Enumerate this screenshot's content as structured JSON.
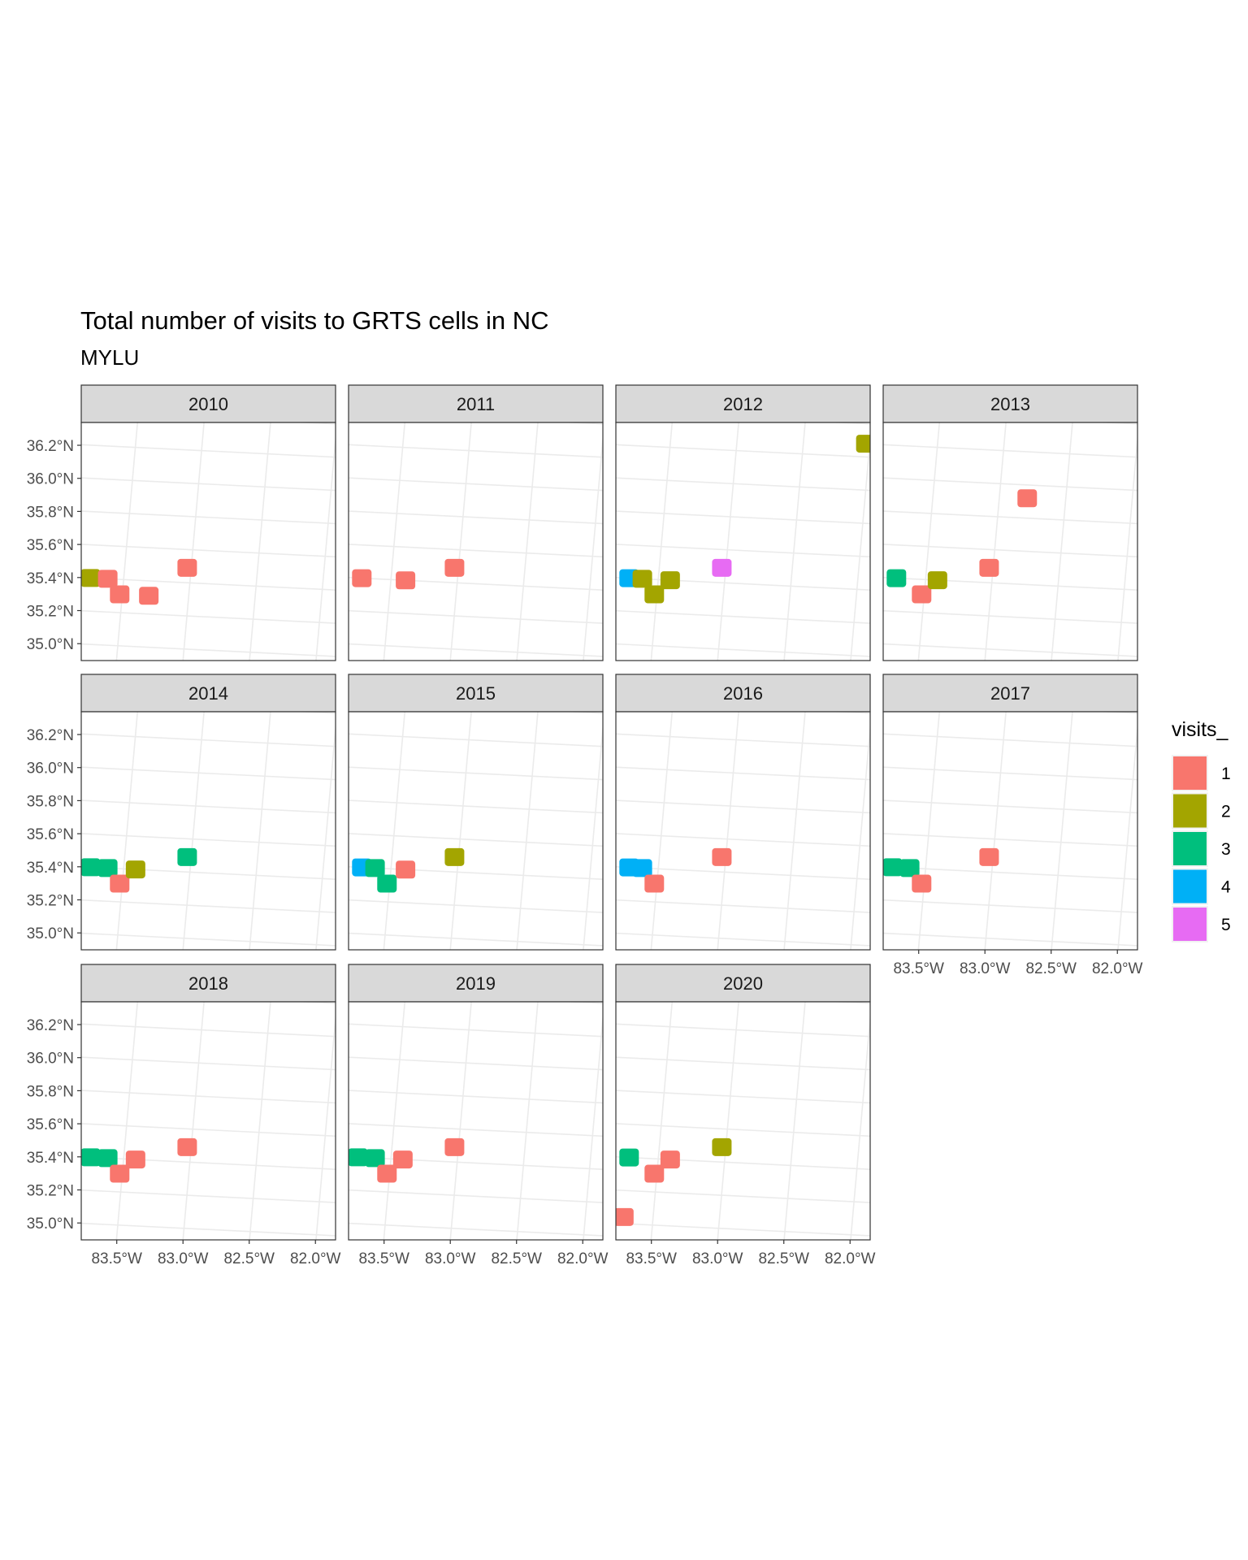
{
  "chart_data": {
    "type": "scatter",
    "title": "Total number of visits to GRTS cells in NC",
    "subtitle": "MYLU",
    "legend": {
      "title": "visits_",
      "position": "right",
      "levels": [
        {
          "label": "1",
          "color": "#F8766D"
        },
        {
          "label": "2",
          "color": "#A3A500"
        },
        {
          "label": "3",
          "color": "#00BF7D"
        },
        {
          "label": "4",
          "color": "#00B0F6"
        },
        {
          "label": "5",
          "color": "#E76BF3"
        }
      ]
    },
    "x_tick_labels": [
      "83.5°W",
      "83.0°W",
      "82.5°W",
      "82.0°W"
    ],
    "y_tick_labels": [
      "35.0°N",
      "35.2°N",
      "35.4°N",
      "35.6°N",
      "35.8°N",
      "36.0°N",
      "36.2°N"
    ],
    "x_ticks": [
      -83.5,
      -83.0,
      -82.5,
      -82.0
    ],
    "y_ticks": [
      35.0,
      35.2,
      35.4,
      35.6,
      35.8,
      36.0,
      36.2
    ],
    "xlim": [
      -83.82,
      -81.9
    ],
    "ylim": [
      34.93,
      36.37
    ],
    "grid": true,
    "panels": [
      {
        "label": "2010",
        "cells": [
          {
            "lon": -83.75,
            "lat": 35.4,
            "visits": 2
          },
          {
            "lon": -83.62,
            "lat": 35.4,
            "visits": 1
          },
          {
            "lon": -83.52,
            "lat": 35.31,
            "visits": 1
          },
          {
            "lon": -83.3,
            "lat": 35.31,
            "visits": 1
          },
          {
            "lon": -83.03,
            "lat": 35.49,
            "visits": 1
          }
        ]
      },
      {
        "label": "2011",
        "cells": [
          {
            "lon": -83.72,
            "lat": 35.4,
            "visits": 1
          },
          {
            "lon": -83.39,
            "lat": 35.4,
            "visits": 1
          },
          {
            "lon": -83.03,
            "lat": 35.49,
            "visits": 1
          }
        ]
      },
      {
        "label": "2012",
        "cells": [
          {
            "lon": -83.72,
            "lat": 35.4,
            "visits": 4
          },
          {
            "lon": -83.62,
            "lat": 35.4,
            "visits": 2
          },
          {
            "lon": -83.52,
            "lat": 35.31,
            "visits": 2
          },
          {
            "lon": -83.41,
            "lat": 35.4,
            "visits": 2
          },
          {
            "lon": -83.03,
            "lat": 35.49,
            "visits": 5
          },
          {
            "lon": -82.03,
            "lat": 36.28,
            "visits": 2
          }
        ]
      },
      {
        "label": "2013",
        "cells": [
          {
            "lon": -83.72,
            "lat": 35.4,
            "visits": 3
          },
          {
            "lon": -83.52,
            "lat": 35.31,
            "visits": 1
          },
          {
            "lon": -83.41,
            "lat": 35.4,
            "visits": 2
          },
          {
            "lon": -83.03,
            "lat": 35.49,
            "visits": 1
          },
          {
            "lon": -82.79,
            "lat": 35.92,
            "visits": 1
          }
        ]
      },
      {
        "label": "2014",
        "cells": [
          {
            "lon": -83.75,
            "lat": 35.4,
            "visits": 3
          },
          {
            "lon": -83.62,
            "lat": 35.4,
            "visits": 3
          },
          {
            "lon": -83.52,
            "lat": 35.31,
            "visits": 1
          },
          {
            "lon": -83.41,
            "lat": 35.4,
            "visits": 2
          },
          {
            "lon": -83.03,
            "lat": 35.49,
            "visits": 3
          }
        ]
      },
      {
        "label": "2015",
        "cells": [
          {
            "lon": -83.72,
            "lat": 35.4,
            "visits": 4
          },
          {
            "lon": -83.62,
            "lat": 35.4,
            "visits": 3
          },
          {
            "lon": -83.52,
            "lat": 35.31,
            "visits": 3
          },
          {
            "lon": -83.39,
            "lat": 35.4,
            "visits": 1
          },
          {
            "lon": -83.03,
            "lat": 35.49,
            "visits": 2
          }
        ]
      },
      {
        "label": "2016",
        "cells": [
          {
            "lon": -83.72,
            "lat": 35.4,
            "visits": 4
          },
          {
            "lon": -83.62,
            "lat": 35.4,
            "visits": 4
          },
          {
            "lon": -83.52,
            "lat": 35.31,
            "visits": 1
          },
          {
            "lon": -83.03,
            "lat": 35.49,
            "visits": 1
          }
        ]
      },
      {
        "label": "2017",
        "cells": [
          {
            "lon": -83.75,
            "lat": 35.4,
            "visits": 3
          },
          {
            "lon": -83.62,
            "lat": 35.4,
            "visits": 3
          },
          {
            "lon": -83.52,
            "lat": 35.31,
            "visits": 1
          },
          {
            "lon": -83.03,
            "lat": 35.49,
            "visits": 1
          }
        ]
      },
      {
        "label": "2018",
        "cells": [
          {
            "lon": -83.75,
            "lat": 35.4,
            "visits": 3
          },
          {
            "lon": -83.62,
            "lat": 35.4,
            "visits": 3
          },
          {
            "lon": -83.52,
            "lat": 35.31,
            "visits": 1
          },
          {
            "lon": -83.41,
            "lat": 35.4,
            "visits": 1
          },
          {
            "lon": -83.03,
            "lat": 35.49,
            "visits": 1
          }
        ]
      },
      {
        "label": "2019",
        "cells": [
          {
            "lon": -83.75,
            "lat": 35.4,
            "visits": 3
          },
          {
            "lon": -83.62,
            "lat": 35.4,
            "visits": 3
          },
          {
            "lon": -83.52,
            "lat": 35.31,
            "visits": 1
          },
          {
            "lon": -83.41,
            "lat": 35.4,
            "visits": 1
          },
          {
            "lon": -83.03,
            "lat": 35.49,
            "visits": 1
          }
        ]
      },
      {
        "label": "2020",
        "cells": [
          {
            "lon": -83.72,
            "lat": 35.4,
            "visits": 3
          },
          {
            "lon": -83.52,
            "lat": 35.31,
            "visits": 1
          },
          {
            "lon": -83.41,
            "lat": 35.4,
            "visits": 1
          },
          {
            "lon": -83.03,
            "lat": 35.49,
            "visits": 2
          },
          {
            "lon": -83.72,
            "lat": 35.04,
            "visits": 1
          }
        ]
      }
    ]
  }
}
